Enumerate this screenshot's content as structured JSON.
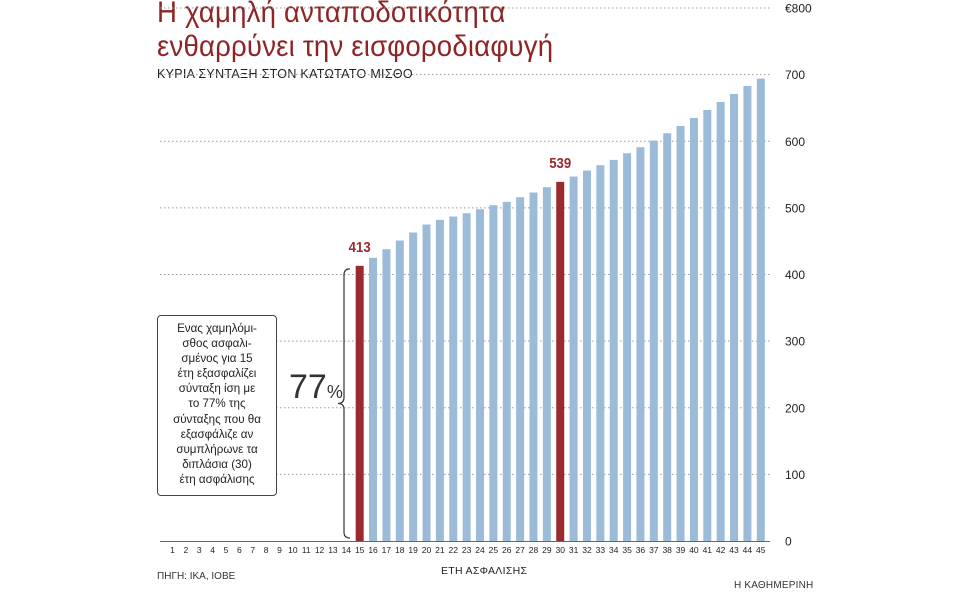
{
  "title_line1": "Η χαμηλή ανταποδοτικότητα",
  "title_line2": "ενθαρρύνει την εισφοροδιαφυγή",
  "subtitle": "ΚΥΡΙΑ ΣΥΝΤΑΞΗ ΣΤΟΝ ΚΑΤΩΤΑΤΟ ΜΙΣΘΟ",
  "annotation": {
    "text": "Ενας χαμηλόμι-\nσθος ασφαλι-\nσμένος για 15\nέτη εξασφαλίζει\nσύνταξη ίση με\nτο 77% της\nσύνταξης που θα\nεξασφάλιζε αν\nσυμπλήρωνε τα\nδιπλάσια (30)\nέτη ασφάλισης",
    "percent_value": "77",
    "percent_symbol": "%"
  },
  "source": "ΠΗΓΗ: ΙΚΑ, ΙΟΒΕ",
  "credit": "Η ΚΑΘΗΜΕΡΙΝΗ",
  "colors": {
    "bar": "#9bbbd8",
    "highlight": "#9b2a2e",
    "title": "#8e2426",
    "grid": "#9a9a9a"
  },
  "chart_data": {
    "type": "bar",
    "xlabel": "ΕΤΗ ΑΣΦΑΛΙΣΗΣ",
    "ylabel": "",
    "ylim": [
      0,
      800
    ],
    "yticks": [
      "0",
      "100",
      "200",
      "300",
      "400",
      "500",
      "600",
      "700",
      "€800"
    ],
    "categories": [
      "1",
      "2",
      "3",
      "4",
      "5",
      "6",
      "7",
      "8",
      "9",
      "10",
      "11",
      "12",
      "13",
      "14",
      "15",
      "16",
      "17",
      "18",
      "19",
      "20",
      "21",
      "22",
      "23",
      "24",
      "25",
      "26",
      "27",
      "28",
      "29",
      "30",
      "31",
      "32",
      "33",
      "34",
      "35",
      "36",
      "37",
      "38",
      "39",
      "40",
      "41",
      "42",
      "43",
      "44",
      "45"
    ],
    "values": [
      null,
      null,
      null,
      null,
      null,
      null,
      null,
      null,
      null,
      null,
      null,
      null,
      null,
      null,
      413,
      425,
      438,
      451,
      463,
      475,
      482,
      487,
      492,
      498,
      504,
      509,
      516,
      523,
      531,
      539,
      547,
      556,
      564,
      572,
      582,
      591,
      601,
      612,
      623,
      635,
      647,
      659,
      671,
      683,
      694
    ],
    "highlight": [
      "15",
      "30"
    ],
    "data_labels": [
      {
        "category": "15",
        "label": "413"
      },
      {
        "category": "30",
        "label": "539"
      }
    ],
    "grid": "dotted horizontal",
    "y_axis_position": "right"
  }
}
